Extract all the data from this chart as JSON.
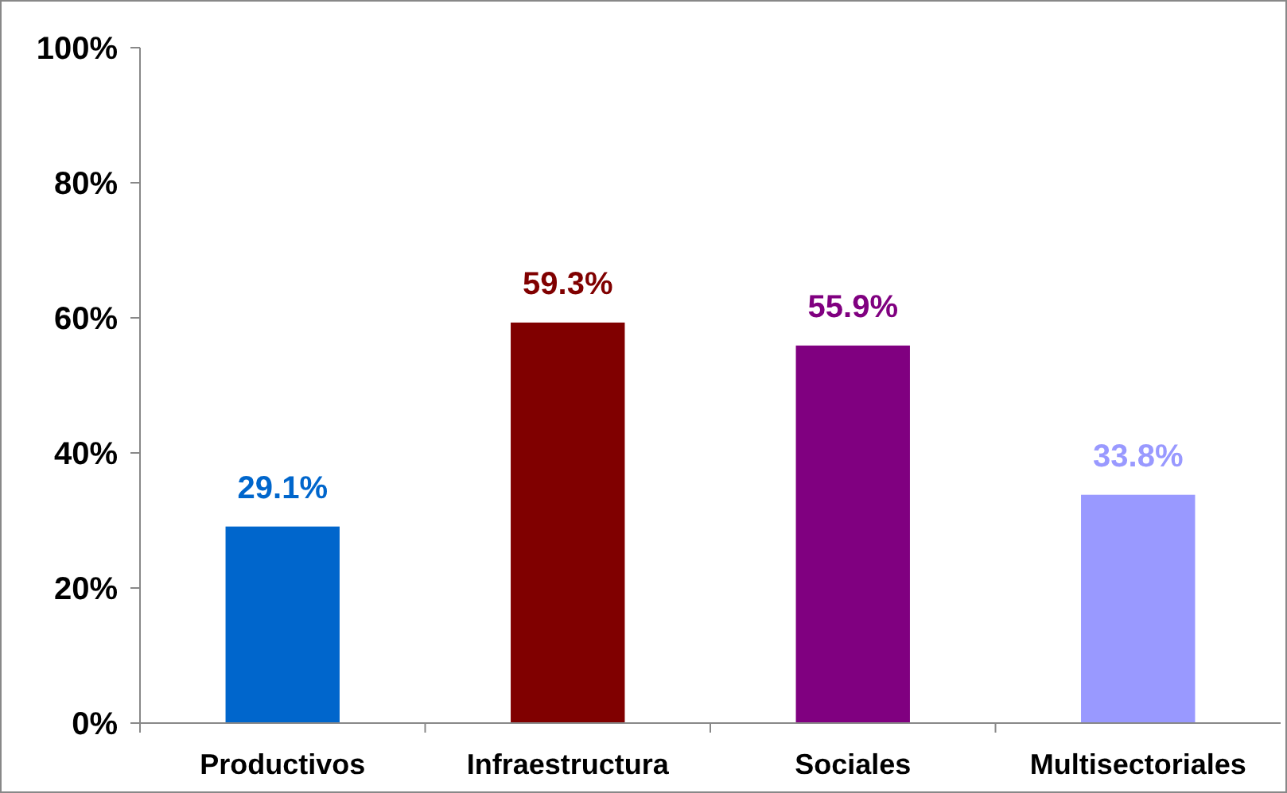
{
  "chart_data": {
    "type": "bar",
    "categories": [
      "Productivos",
      "Infraestructura",
      "Sociales",
      "Multisectoriales"
    ],
    "values": [
      29.1,
      59.3,
      55.9,
      33.8
    ],
    "colors": [
      "#0066cc",
      "#800000",
      "#800080",
      "#9999ff"
    ],
    "value_labels": [
      "29.1%",
      "59.3%",
      "55.9%",
      "33.8%"
    ],
    "ylim": [
      0,
      100
    ],
    "yticks": [
      {
        "value": 0,
        "label": "0%"
      },
      {
        "value": 20,
        "label": "20%"
      },
      {
        "value": 40,
        "label": "40%"
      },
      {
        "value": 60,
        "label": "60%"
      },
      {
        "value": 80,
        "label": "80%"
      },
      {
        "value": 100,
        "label": "100%"
      }
    ],
    "grid": false
  }
}
